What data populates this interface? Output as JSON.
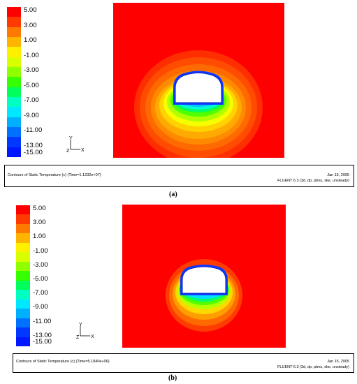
{
  "legend": {
    "labels": [
      "5.00",
      "3.00",
      "1.00",
      "-1.00",
      "-3.00",
      "-5.00",
      "-7.00",
      "-9.00",
      "-11.00",
      "-13.00",
      "-15.00"
    ],
    "colors": [
      "#ff0000",
      "#ff3a00",
      "#ff7800",
      "#ffb400",
      "#fff000",
      "#d8ff00",
      "#90ff00",
      "#36ff00",
      "#00ff5a",
      "#00ffc0",
      "#00e8ff",
      "#00b0ff",
      "#0070ff",
      "#0038ff",
      "#0018ff"
    ]
  },
  "axes": {
    "y": "Y",
    "z": "Z",
    "x": "X"
  },
  "panels": [
    {
      "caption_left": "Contours of Static Temperature (c)  (Time=1.1232e+07)",
      "date": "Jan 15, 2005",
      "solver": "FLUENT 6.3 (3d, dp, pbns, ske, unsteady)",
      "label": "(a)"
    },
    {
      "caption_left": "Contours of Static Temperature (c)  (Time=5.1840e+06)",
      "date": "Jan 15, 2005",
      "solver": "FLUENT 6.3 (3d, dp, pbns, ske, unsteady)",
      "label": "(b)"
    }
  ]
}
